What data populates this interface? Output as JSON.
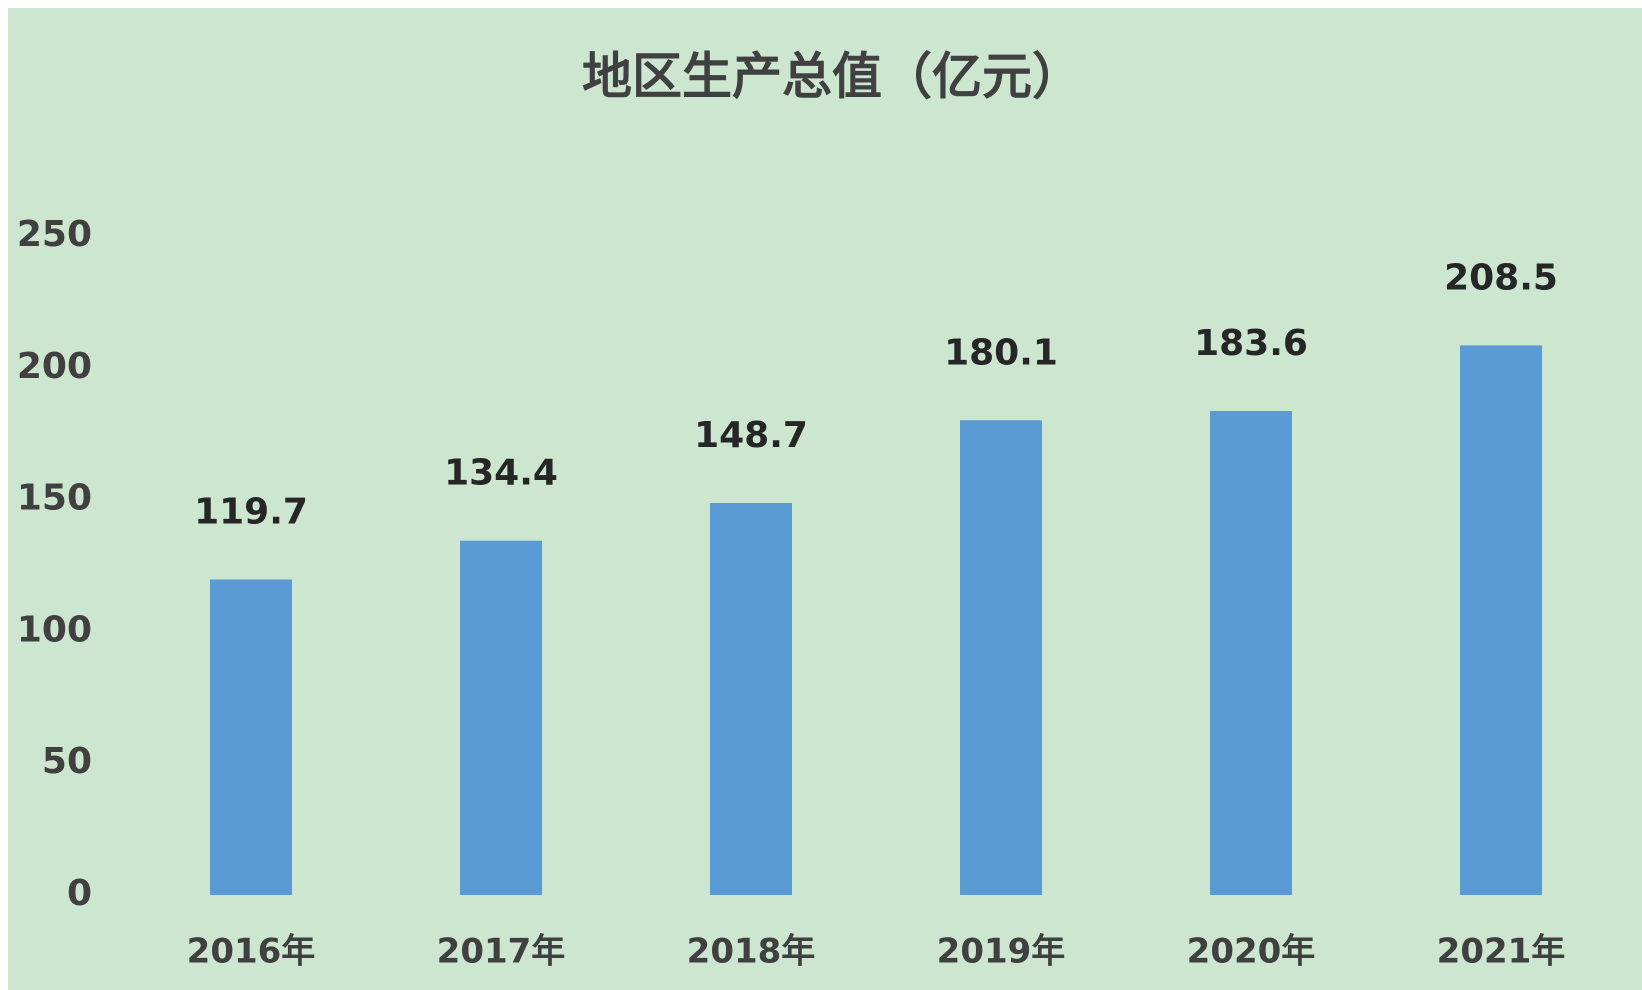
{
  "chart_data": {
    "type": "bar",
    "title": "地区生产总值（亿元）",
    "categories": [
      "2016年",
      "2017年",
      "2018年",
      "2019年",
      "2020年",
      "2021年"
    ],
    "values": [
      119.7,
      134.4,
      148.7,
      180.1,
      183.6,
      208.5
    ],
    "color": "#5b9bd5",
    "ylim": [
      0,
      250
    ],
    "yticks": [
      0,
      50,
      100,
      150,
      200,
      250
    ],
    "grid": false,
    "data_labels": true
  }
}
